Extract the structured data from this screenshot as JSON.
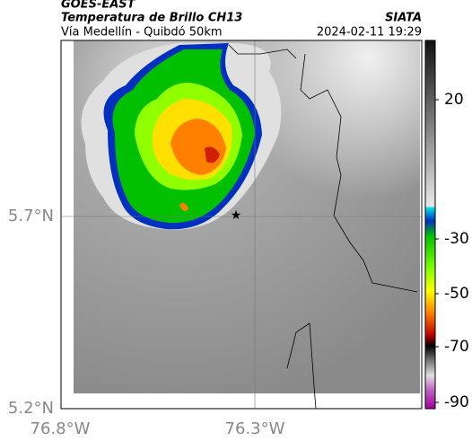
{
  "header": {
    "source": "GOES-EAST",
    "product": "Temperatura de Brillo CH13",
    "region": "Vía Medellín - Quibdó 50km",
    "agency": "SIATA",
    "timestamp": "2024-02-11 19:29"
  },
  "map": {
    "lat_labels": [
      "5.7°N",
      "5.2°N"
    ],
    "lon_labels": [
      "76.8°W",
      "76.3°W"
    ]
  },
  "colorbar": {
    "tick_labels": [
      "20",
      "-30",
      "-50",
      "-70",
      "-90"
    ]
  }
}
